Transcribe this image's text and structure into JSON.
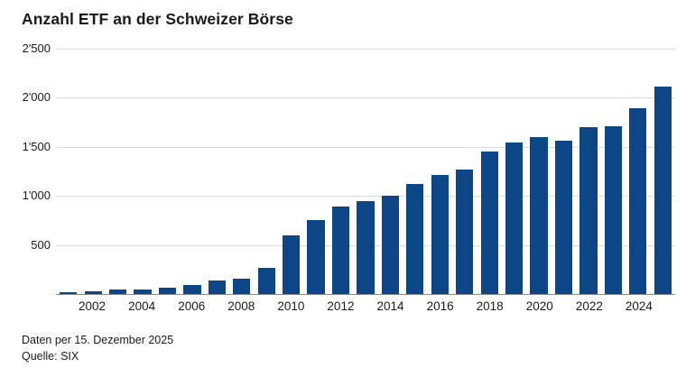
{
  "title": "Anzahl ETF an der Schweizer Börse",
  "footer": {
    "line1": "Daten per 15. Dezember 2025",
    "line2": "Quelle: SIX"
  },
  "colors": {
    "bar": "#0d4687",
    "gridline": "#dcdcdc",
    "axis_line": "#898989",
    "text": "#1a1a1a",
    "background": "#ffffff"
  },
  "chart_data": {
    "type": "bar",
    "title": "Anzahl ETF an der Schweizer Börse",
    "xlabel": "",
    "ylabel": "",
    "ylim": [
      0,
      2500
    ],
    "grid": true,
    "categories": [
      "2001",
      "2002",
      "2003",
      "2004",
      "2005",
      "2006",
      "2007",
      "2008",
      "2009",
      "2010",
      "2011",
      "2012",
      "2013",
      "2014",
      "2015",
      "2016",
      "2017",
      "2018",
      "2019",
      "2020",
      "2021",
      "2022",
      "2023",
      "2024",
      "2025"
    ],
    "values": [
      18,
      28,
      42,
      50,
      60,
      90,
      140,
      160,
      270,
      600,
      750,
      890,
      950,
      1000,
      1120,
      1210,
      1270,
      1450,
      1540,
      1600,
      1560,
      1700,
      1710,
      1890,
      2110
    ],
    "y_tick_labels": [
      "2'500",
      "2'000",
      "1'500",
      "1'000",
      "500"
    ],
    "y_tick_values": [
      2500,
      2000,
      1500,
      1000,
      500
    ],
    "x_tick_labels": [
      "2002",
      "2004",
      "2006",
      "2008",
      "2010",
      "2012",
      "2014",
      "2016",
      "2018",
      "2020",
      "2022",
      "2024"
    ],
    "x_ticks_every": 2,
    "x_ticks_start_index": 1,
    "legend": null
  }
}
